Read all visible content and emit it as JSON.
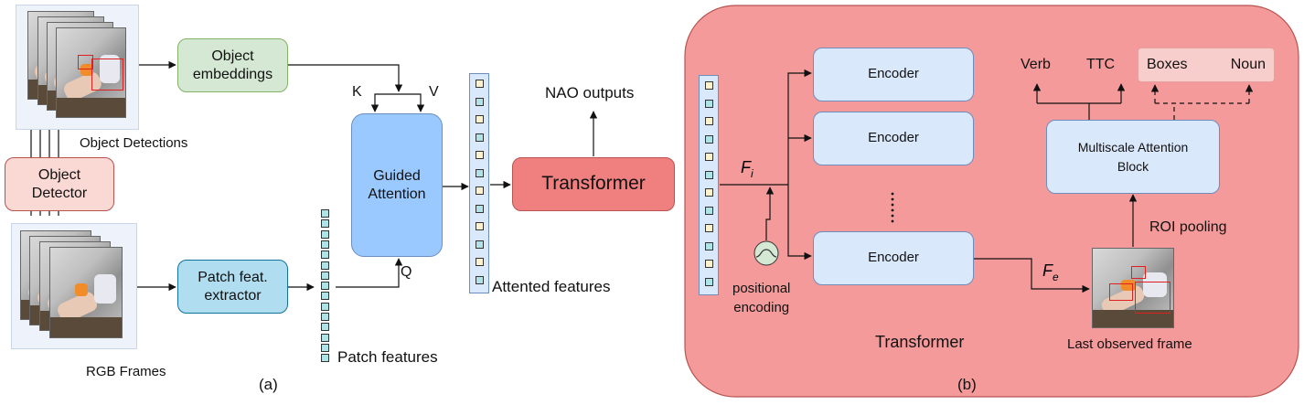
{
  "panel_a": {
    "object_detections_caption": "Object Detections",
    "rgb_frames_caption": "RGB Frames",
    "object_detector": "Object\nDetector",
    "object_embeddings": "Object\nembeddings",
    "patch_extractor": "Patch feat.\nextractor",
    "guided_attention": "Guided\nAttention",
    "k_label": "K",
    "v_label": "V",
    "q_label": "Q",
    "patch_features_caption": "Patch features",
    "attended_features_caption": "Attented features",
    "transformer": "Transformer",
    "nao_outputs": "NAO outputs",
    "sub_label": "(a)"
  },
  "panel_b": {
    "title": "Transformer",
    "encoder_1": "Encoder",
    "encoder_2": "Encoder",
    "encoder_3": "Encoder",
    "fi_label": "F",
    "fi_sub": "i",
    "fe_label": "F",
    "fe_sub": "e",
    "positional_encoding": "positional\nencoding",
    "multiscale": "Multiscale Attention\nBlock",
    "roi_pooling": "ROI pooling",
    "last_frame_caption": "Last observed frame",
    "verb": "Verb",
    "ttc": "TTC",
    "boxes": "Boxes",
    "noun": "Noun",
    "sub_label": "(b)"
  },
  "colors": {
    "green_box": "#d5e8d4",
    "green_border": "#82b366",
    "red_light": "#f8cecc",
    "red_border": "#b85450",
    "blue_light": "#dae8fc",
    "blue_border": "#6c8ebf",
    "guided_blue": "#99c9ff",
    "cyan_box": "#b1ddf0",
    "cyan_border": "#10739e",
    "transformer_red": "#f08080",
    "panel_b_bg": "#f59a9a",
    "yellow_cell": "#fff2cc",
    "teal_cell": "#b0e3e6"
  }
}
